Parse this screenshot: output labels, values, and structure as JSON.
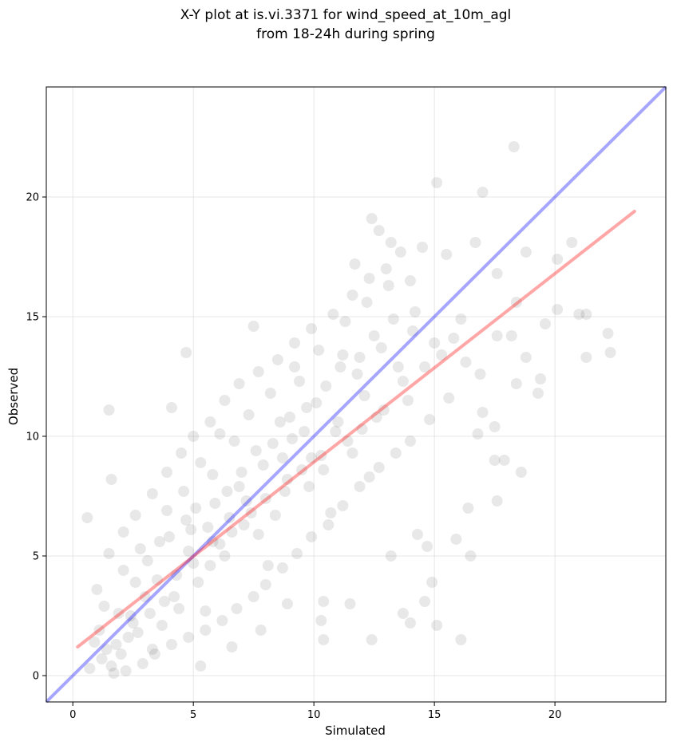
{
  "chart_data": {
    "type": "scatter",
    "title_line1": "X-Y plot at is.vi.3371 for wind_speed_at_10m_agl",
    "title_line2": "from 18-24h during spring",
    "xlabel": "Simulated",
    "ylabel": "Observed",
    "xlim": [
      -1.1,
      24.6
    ],
    "ylim": [
      -1.1,
      24.6
    ],
    "xticks": [
      0,
      5,
      10,
      15,
      20
    ],
    "yticks": [
      0,
      5,
      10,
      15,
      20
    ],
    "grid": true,
    "point_color": "#000000",
    "point_alpha": 0.09,
    "identity_line": {
      "from": [
        -1.1,
        -1.1
      ],
      "to": [
        24.6,
        24.6
      ],
      "color": "#0000ff",
      "alpha": 0.35
    },
    "fit_line": {
      "from": [
        0.2,
        1.2
      ],
      "to": [
        23.3,
        19.4
      ],
      "color": "#ff0000",
      "alpha": 0.35
    },
    "points": [
      [
        18.3,
        22.1
      ],
      [
        15.1,
        20.6
      ],
      [
        17.0,
        20.2
      ],
      [
        12.4,
        19.1
      ],
      [
        20.7,
        18.1
      ],
      [
        22.2,
        14.3
      ],
      [
        22.3,
        13.5
      ],
      [
        21.3,
        13.3
      ],
      [
        21.0,
        15.1
      ],
      [
        21.3,
        15.1
      ],
      [
        19.6,
        14.7
      ],
      [
        19.4,
        12.4
      ],
      [
        19.3,
        11.8
      ],
      [
        18.6,
        8.5
      ],
      [
        17.9,
        9.0
      ],
      [
        17.5,
        9.0
      ],
      [
        17.6,
        7.3
      ],
      [
        16.4,
        7.0
      ],
      [
        16.5,
        5.0
      ],
      [
        15.9,
        5.7
      ],
      [
        16.1,
        1.5
      ],
      [
        15.1,
        2.1
      ],
      [
        14.0,
        2.2
      ],
      [
        13.7,
        2.6
      ],
      [
        14.9,
        3.9
      ],
      [
        14.6,
        3.1
      ],
      [
        12.4,
        1.5
      ],
      [
        11.5,
        3.0
      ],
      [
        10.4,
        1.5
      ],
      [
        10.3,
        2.3
      ],
      [
        10.4,
        3.1
      ],
      [
        13.2,
        5.0
      ],
      [
        14.3,
        5.9
      ],
      [
        14.7,
        5.4
      ],
      [
        4.7,
        13.5
      ],
      [
        7.5,
        14.6
      ],
      [
        1.5,
        11.1
      ],
      [
        1.6,
        8.2
      ],
      [
        4.1,
        11.2
      ],
      [
        0.6,
        6.6
      ],
      [
        11.7,
        17.2
      ],
      [
        13.2,
        18.1
      ],
      [
        12.7,
        18.6
      ],
      [
        13.6,
        17.7
      ],
      [
        14.5,
        17.9
      ],
      [
        15.5,
        17.6
      ],
      [
        16.7,
        18.1
      ],
      [
        17.6,
        16.8
      ],
      [
        18.4,
        15.6
      ],
      [
        18.8,
        17.7
      ],
      [
        20.1,
        15.3
      ],
      [
        20.1,
        17.4
      ],
      [
        18.8,
        13.3
      ],
      [
        18.4,
        12.2
      ],
      [
        17.0,
        11.0
      ],
      [
        17.5,
        10.4
      ],
      [
        16.8,
        10.1
      ],
      [
        17.6,
        14.2
      ],
      [
        18.2,
        14.2
      ],
      [
        9.6,
        10.2
      ],
      [
        8.7,
        9.1
      ],
      [
        11.2,
        13.4
      ],
      [
        6.5,
        6.6
      ],
      [
        5.8,
        8.4
      ],
      [
        3.6,
        5.6
      ],
      [
        2.4,
        2.5
      ],
      [
        1.8,
        1.3
      ],
      [
        1.2,
        0.7
      ],
      [
        10.4,
        8.6
      ],
      [
        12.1,
        11.7
      ],
      [
        7.2,
        7.3
      ],
      [
        4.8,
        5.2
      ],
      [
        3.0,
        3.3
      ],
      [
        9.1,
        9.9
      ],
      [
        13.5,
        12.9
      ],
      [
        6.1,
        5.5
      ],
      [
        7.9,
        8.8
      ],
      [
        5.2,
        3.9
      ],
      [
        2.7,
        1.8
      ],
      [
        8.4,
        6.7
      ],
      [
        11.0,
        10.6
      ],
      [
        12.8,
        13.7
      ],
      [
        14.1,
        14.4
      ],
      [
        3.9,
        6.9
      ],
      [
        6.7,
        9.8
      ],
      [
        9.4,
        12.3
      ],
      [
        5.5,
        2.7
      ],
      [
        8.1,
        4.6
      ],
      [
        10.7,
        6.8
      ],
      [
        12.3,
        8.3
      ],
      [
        1.3,
        2.9
      ],
      [
        2.1,
        4.4
      ],
      [
        3.3,
        1.1
      ],
      [
        4.4,
        2.8
      ],
      [
        7.7,
        5.9
      ],
      [
        9.8,
        7.9
      ],
      [
        11.6,
        9.3
      ],
      [
        13.9,
        11.5
      ],
      [
        15.3,
        13.4
      ],
      [
        16.1,
        14.9
      ],
      [
        0.9,
        1.4
      ],
      [
        1.6,
        0.4
      ],
      [
        2.3,
        1.6
      ],
      [
        3.7,
        2.1
      ],
      [
        4.9,
        6.1
      ],
      [
        5.9,
        7.2
      ],
      [
        6.9,
        7.9
      ],
      [
        8.6,
        10.6
      ],
      [
        10.1,
        11.4
      ],
      [
        11.8,
        12.6
      ],
      [
        2.8,
        5.3
      ],
      [
        3.5,
        4.0
      ],
      [
        4.2,
        3.3
      ],
      [
        5.7,
        4.6
      ],
      [
        6.3,
        5.0
      ],
      [
        7.1,
        6.3
      ],
      [
        8.9,
        8.2
      ],
      [
        9.9,
        9.1
      ],
      [
        10.9,
        10.2
      ],
      [
        12.6,
        10.8
      ],
      [
        4.6,
        7.7
      ],
      [
        5.3,
        8.9
      ],
      [
        6.1,
        10.1
      ],
      [
        7.3,
        10.9
      ],
      [
        8.2,
        11.8
      ],
      [
        9.2,
        12.9
      ],
      [
        10.2,
        13.6
      ],
      [
        11.3,
        14.8
      ],
      [
        12.2,
        15.6
      ],
      [
        13.1,
        16.3
      ],
      [
        1.1,
        1.9
      ],
      [
        1.9,
        2.6
      ],
      [
        2.6,
        3.9
      ],
      [
        3.1,
        4.8
      ],
      [
        4.0,
        5.8
      ],
      [
        4.7,
        6.5
      ],
      [
        5.1,
        7.0
      ],
      [
        5.6,
        6.2
      ],
      [
        6.4,
        7.7
      ],
      [
        7.0,
        8.5
      ],
      [
        7.6,
        9.4
      ],
      [
        8.3,
        9.7
      ],
      [
        9.0,
        10.8
      ],
      [
        9.7,
        11.2
      ],
      [
        10.5,
        12.1
      ],
      [
        11.1,
        12.9
      ],
      [
        11.9,
        13.3
      ],
      [
        12.5,
        14.2
      ],
      [
        13.3,
        14.9
      ],
      [
        14.2,
        15.2
      ],
      [
        0.7,
        0.3
      ],
      [
        1.4,
        1.1
      ],
      [
        2.0,
        0.9
      ],
      [
        2.5,
        2.2
      ],
      [
        3.2,
        2.6
      ],
      [
        3.8,
        3.1
      ],
      [
        4.3,
        4.2
      ],
      [
        5.0,
        4.7
      ],
      [
        5.8,
        5.6
      ],
      [
        6.6,
        6.0
      ],
      [
        7.4,
        6.8
      ],
      [
        8.0,
        7.4
      ],
      [
        8.8,
        7.7
      ],
      [
        9.5,
        8.6
      ],
      [
        10.3,
        9.2
      ],
      [
        11.4,
        9.8
      ],
      [
        12.0,
        10.3
      ],
      [
        12.9,
        11.1
      ],
      [
        13.7,
        12.3
      ],
      [
        14.6,
        12.9
      ],
      [
        15.0,
        13.9
      ],
      [
        15.8,
        14.1
      ],
      [
        16.3,
        13.1
      ],
      [
        16.9,
        12.6
      ],
      [
        15.6,
        11.6
      ],
      [
        14.8,
        10.7
      ],
      [
        14.0,
        9.8
      ],
      [
        13.4,
        9.3
      ],
      [
        12.7,
        8.7
      ],
      [
        11.9,
        7.9
      ],
      [
        11.2,
        7.1
      ],
      [
        10.6,
        6.3
      ],
      [
        9.9,
        5.8
      ],
      [
        9.3,
        5.1
      ],
      [
        8.7,
        4.5
      ],
      [
        8.0,
        3.8
      ],
      [
        7.5,
        3.3
      ],
      [
        6.8,
        2.8
      ],
      [
        6.2,
        2.3
      ],
      [
        5.5,
        1.9
      ],
      [
        4.8,
        1.6
      ],
      [
        4.1,
        1.3
      ],
      [
        3.4,
        0.9
      ],
      [
        2.9,
        0.5
      ],
      [
        2.2,
        0.2
      ],
      [
        1.7,
        0.1
      ],
      [
        5.3,
        0.4
      ],
      [
        6.6,
        1.2
      ],
      [
        7.8,
        1.9
      ],
      [
        8.9,
        3.0
      ],
      [
        1.0,
        3.6
      ],
      [
        1.5,
        5.1
      ],
      [
        2.1,
        6.0
      ],
      [
        2.6,
        6.7
      ],
      [
        3.3,
        7.6
      ],
      [
        3.9,
        8.5
      ],
      [
        4.5,
        9.3
      ],
      [
        5.0,
        10.0
      ],
      [
        5.7,
        10.6
      ],
      [
        6.3,
        11.5
      ],
      [
        6.9,
        12.2
      ],
      [
        7.7,
        12.7
      ],
      [
        8.5,
        13.2
      ],
      [
        9.2,
        13.9
      ],
      [
        9.9,
        14.5
      ],
      [
        10.8,
        15.1
      ],
      [
        11.6,
        15.9
      ],
      [
        12.3,
        16.6
      ],
      [
        13.0,
        17.0
      ],
      [
        14.0,
        16.5
      ]
    ]
  }
}
